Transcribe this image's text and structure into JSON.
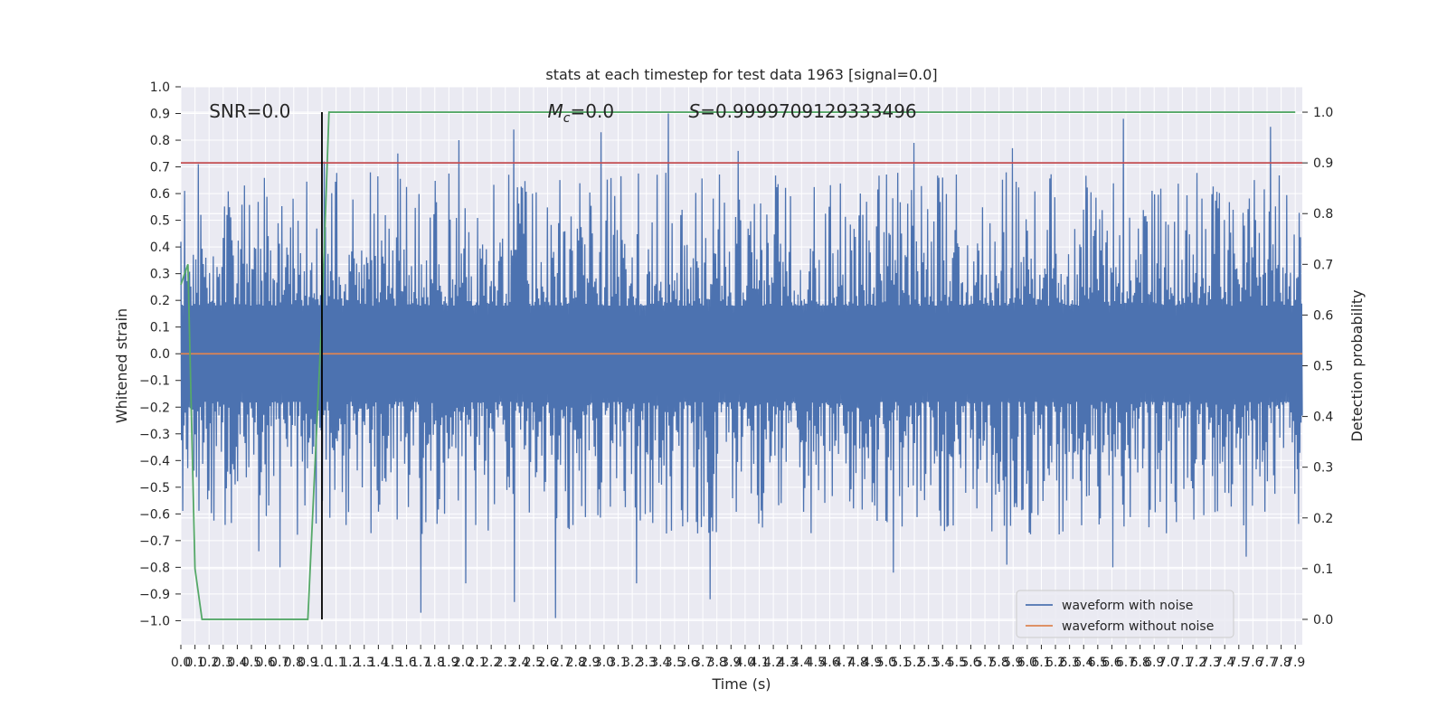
{
  "chart_data": {
    "type": "line",
    "title": "stats at each timestep for test data 1963 [signal=0.0]",
    "xlabel": "Time (s)",
    "ylabel": "Whitened strain",
    "y2label": "Detection probability",
    "xlim": [
      0.0,
      7.95
    ],
    "ylim": [
      -1.09,
      1.0
    ],
    "y2lim": [
      -0.05,
      1.05
    ],
    "xticks": [
      "0.0",
      "0.1",
      "0.2",
      "0.3",
      "0.4",
      "0.5",
      "0.6",
      "0.7",
      "0.8",
      "0.9",
      "1.0",
      "1.1",
      "1.2",
      "1.3",
      "1.4",
      "1.5",
      "1.6",
      "1.7",
      "1.8",
      "1.9",
      "2.0",
      "2.1",
      "2.2",
      "2.3",
      "2.4",
      "2.5",
      "2.6",
      "2.7",
      "2.8",
      "2.9",
      "3.0",
      "3.1",
      "3.2",
      "3.3",
      "3.4",
      "3.5",
      "3.6",
      "3.7",
      "3.8",
      "3.9",
      "4.0",
      "4.1",
      "4.2",
      "4.3",
      "4.4",
      "4.5",
      "4.6",
      "4.7",
      "4.8",
      "4.9",
      "5.0",
      "5.1",
      "5.2",
      "5.3",
      "5.4",
      "5.5",
      "5.6",
      "5.7",
      "5.8",
      "5.9",
      "6.0",
      "6.1",
      "6.2",
      "6.3",
      "6.4",
      "6.5",
      "6.6",
      "6.7",
      "6.8",
      "6.9",
      "7.0",
      "7.1",
      "7.2",
      "7.3",
      "7.4",
      "7.5",
      "7.6",
      "7.7",
      "7.8",
      "7.9"
    ],
    "yticks": [
      "1.0",
      "0.9",
      "0.8",
      "0.7",
      "0.6",
      "0.5",
      "0.4",
      "0.3",
      "0.2",
      "0.1",
      "0.0",
      "−0.1",
      "−0.2",
      "−0.3",
      "−0.4",
      "−0.5",
      "−0.6",
      "−0.7",
      "−0.8",
      "−0.9",
      "−1.0"
    ],
    "y2ticks": [
      "1.0",
      "0.9",
      "0.8",
      "0.7",
      "0.6",
      "0.5",
      "0.4",
      "0.3",
      "0.2",
      "0.1",
      "0.0"
    ],
    "annotations": {
      "snr": "SNR=0.0",
      "mc_symbol": "M",
      "mc_subscript": "c",
      "mc_value": "=0.0",
      "s_symbol": "S",
      "s_value": "=0.9999709129333496"
    },
    "series": [
      {
        "name": "waveform with noise",
        "color": "#4c72b0",
        "axis": "left",
        "description": "noise envelope approx ±0.35 with peaks up to 0.9 and troughs down to -1.0",
        "peaks": [
          [
            0.03,
            0.61
          ],
          [
            0.13,
            0.71
          ],
          [
            0.33,
            0.52
          ],
          [
            1.02,
            0.72
          ],
          [
            1.54,
            0.75
          ],
          [
            1.97,
            0.8
          ],
          [
            2.36,
            0.84
          ],
          [
            2.98,
            0.83
          ],
          [
            3.46,
            0.9
          ],
          [
            3.95,
            0.76
          ],
          [
            5.2,
            0.79
          ],
          [
            5.9,
            0.77
          ],
          [
            6.68,
            0.88
          ],
          [
            7.73,
            0.85
          ]
        ],
        "troughs": [
          [
            0.55,
            -0.74
          ],
          [
            0.7,
            -0.8
          ],
          [
            1.7,
            -0.97
          ],
          [
            2.02,
            -0.86
          ],
          [
            2.36,
            -0.93
          ],
          [
            2.65,
            -0.99
          ],
          [
            3.23,
            -0.86
          ],
          [
            3.75,
            -0.92
          ],
          [
            5.05,
            -0.82
          ],
          [
            5.85,
            -0.79
          ],
          [
            6.6,
            -0.8
          ],
          [
            7.55,
            -0.76
          ]
        ]
      },
      {
        "name": "waveform without noise",
        "color": "#dd8452",
        "axis": "left",
        "x": [
          0.0,
          7.95
        ],
        "y": [
          0.0,
          0.0
        ]
      },
      {
        "name": "detection probability",
        "color": "#55a868",
        "axis": "right",
        "x": [
          0.0,
          0.05,
          0.1,
          0.15,
          0.2,
          0.4,
          0.6,
          0.7,
          0.8,
          0.9,
          1.0,
          1.05,
          1.1,
          1.2,
          2.0,
          4.0,
          6.0,
          7.9
        ],
        "y": [
          0.66,
          0.7,
          0.1,
          0.0,
          0.0,
          0.0,
          0.0,
          0.0,
          0.0,
          0.0,
          0.6,
          1.0,
          1.0,
          1.0,
          1.0,
          1.0,
          1.0,
          1.0
        ]
      }
    ],
    "threshold": {
      "axis": "right",
      "value": 0.9,
      "color": "#c44e52"
    },
    "marker_line": {
      "x": 1.0,
      "y2_from": 0.0,
      "y2_to": 1.0,
      "color": "#000000"
    },
    "legend": {
      "position": "lower-right",
      "entries": [
        {
          "label": "waveform with noise",
          "color": "#4c72b0"
        },
        {
          "label": "waveform without noise",
          "color": "#dd8452"
        }
      ]
    }
  }
}
